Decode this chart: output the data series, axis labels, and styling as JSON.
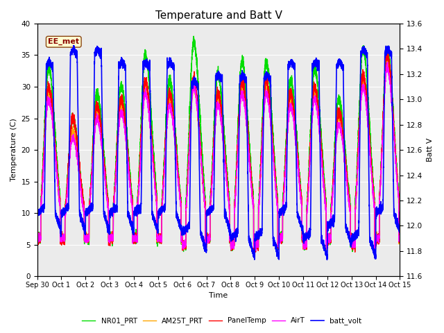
{
  "title": "Temperature and Batt V",
  "xlabel": "Time",
  "ylabel_left": "Temperature (C)",
  "ylabel_right": "Batt V",
  "annotation_text": "EE_met",
  "annotation_color": "#8B0000",
  "annotation_bg": "#FFFFD0",
  "annotation_border": "#8B4513",
  "xlim_start": 0,
  "xlim_end": 15,
  "ylim_left": [
    0,
    40
  ],
  "ylim_right": [
    11.6,
    13.6
  ],
  "yticks_left": [
    0,
    5,
    10,
    15,
    20,
    25,
    30,
    35,
    40
  ],
  "yticks_right": [
    11.6,
    11.8,
    12.0,
    12.2,
    12.4,
    12.6,
    12.8,
    13.0,
    13.2,
    13.4,
    13.6
  ],
  "xtick_labels": [
    "Sep 30",
    "Oct 1",
    "Oct 2",
    "Oct 3",
    "Oct 4",
    "Oct 5",
    "Oct 6",
    "Oct 7",
    "Oct 8",
    "Oct 9",
    "Oct 10",
    "Oct 11",
    "Oct 12",
    "Oct 13",
    "Oct 14",
    "Oct 15"
  ],
  "xtick_positions": [
    0,
    1,
    2,
    3,
    4,
    5,
    6,
    7,
    8,
    9,
    10,
    11,
    12,
    13,
    14,
    15
  ],
  "series": {
    "PanelTemp": {
      "color": "#FF0000",
      "lw": 1.0
    },
    "AirT": {
      "color": "#FF00FF",
      "lw": 1.0
    },
    "NR01_PRT": {
      "color": "#00DD00",
      "lw": 1.0
    },
    "AM25T_PRT": {
      "color": "#FFA500",
      "lw": 1.0
    },
    "batt_volt": {
      "color": "#0000FF",
      "lw": 1.2
    }
  },
  "background_color": "#EBEBEB",
  "grid_color": "#FFFFFF",
  "title_fontsize": 11,
  "figsize": [
    6.4,
    4.8
  ],
  "dpi": 100
}
